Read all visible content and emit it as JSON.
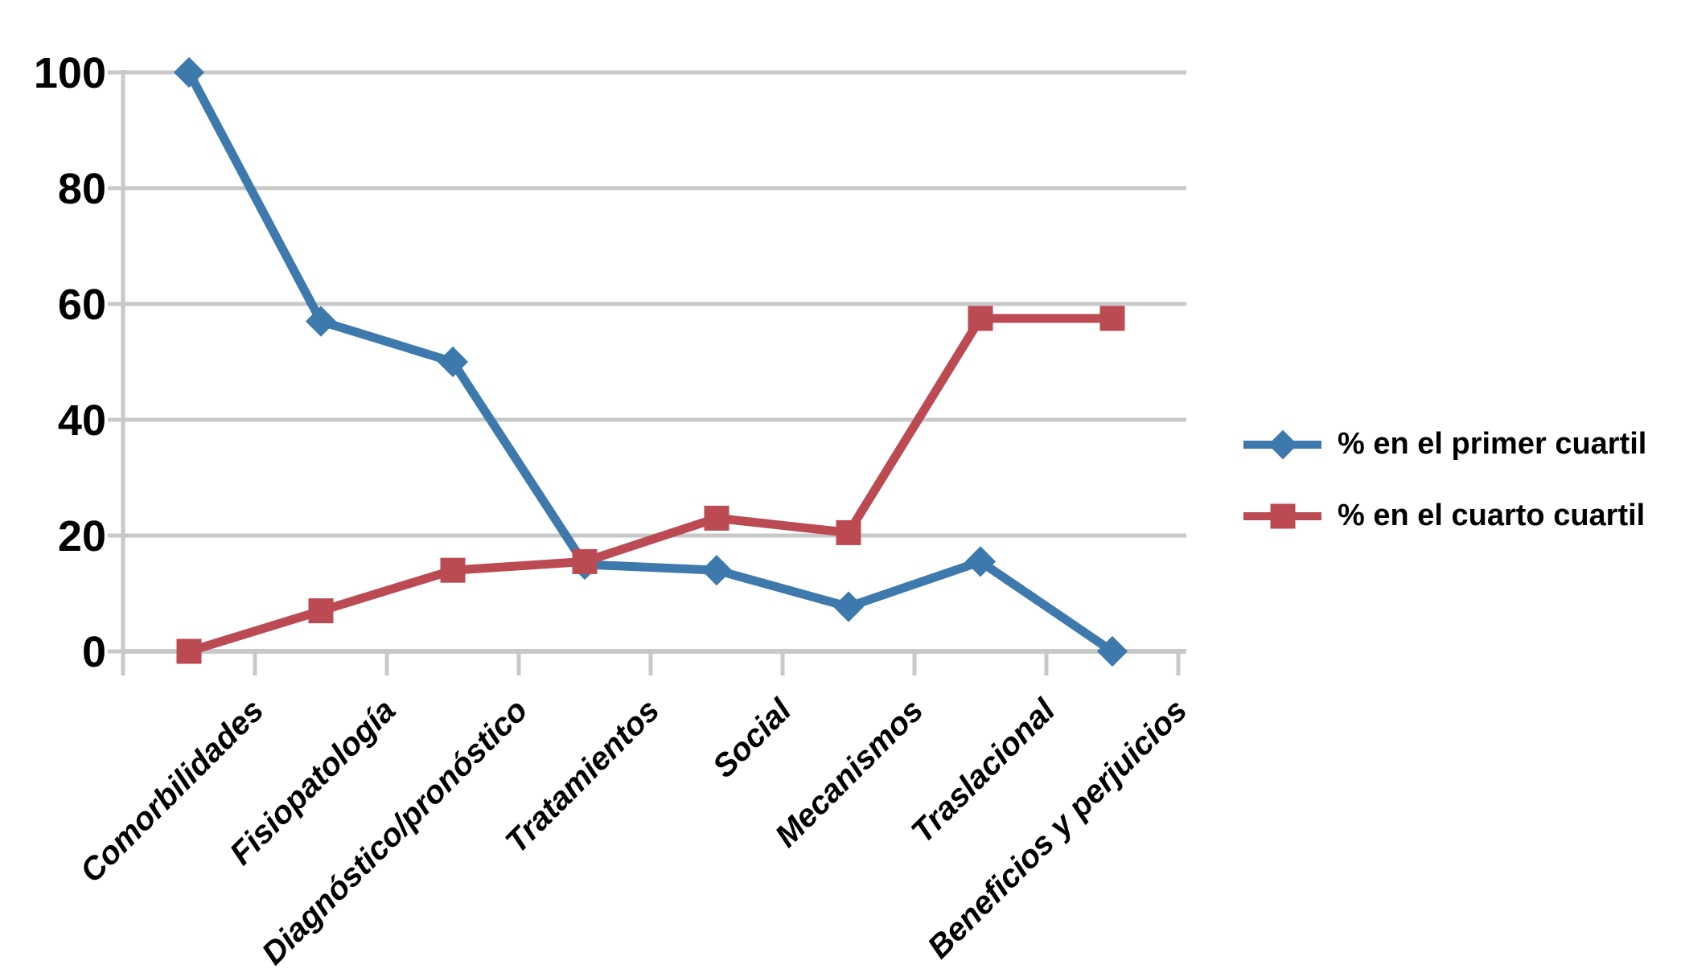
{
  "chart_data": {
    "type": "line",
    "title": "",
    "xlabel": "",
    "ylabel": "",
    "categories": [
      "Comorbilidades",
      "Fisiopatología",
      "Diagnóstico/pronóstico",
      "Tratamientos",
      "Social",
      "Mecanismos",
      "Traslacional",
      "Beneficios y perjuicios"
    ],
    "series": [
      {
        "name": "% en el primer cuartil",
        "color": "#3E79AE",
        "marker": "diamond",
        "values": [
          100,
          57,
          50,
          15,
          14,
          7.7,
          15.5,
          0
        ]
      },
      {
        "name": "% en el cuarto cuartil",
        "color": "#BC4A52",
        "marker": "square",
        "values": [
          0,
          7,
          14,
          15.5,
          23,
          20.5,
          57.5,
          57.5
        ]
      }
    ],
    "ylim": [
      0,
      100
    ],
    "yticks": [
      0,
      20,
      40,
      60,
      80,
      100
    ],
    "ytick_labels": [
      "0",
      "20",
      "40",
      "60",
      "80",
      "100"
    ],
    "grid": true,
    "legend_position": "right"
  },
  "colors": {
    "gridline": "#C8C8C8",
    "axis": "#C8C8C8",
    "tick_text": "#000000",
    "background": "#FFFFFF"
  }
}
